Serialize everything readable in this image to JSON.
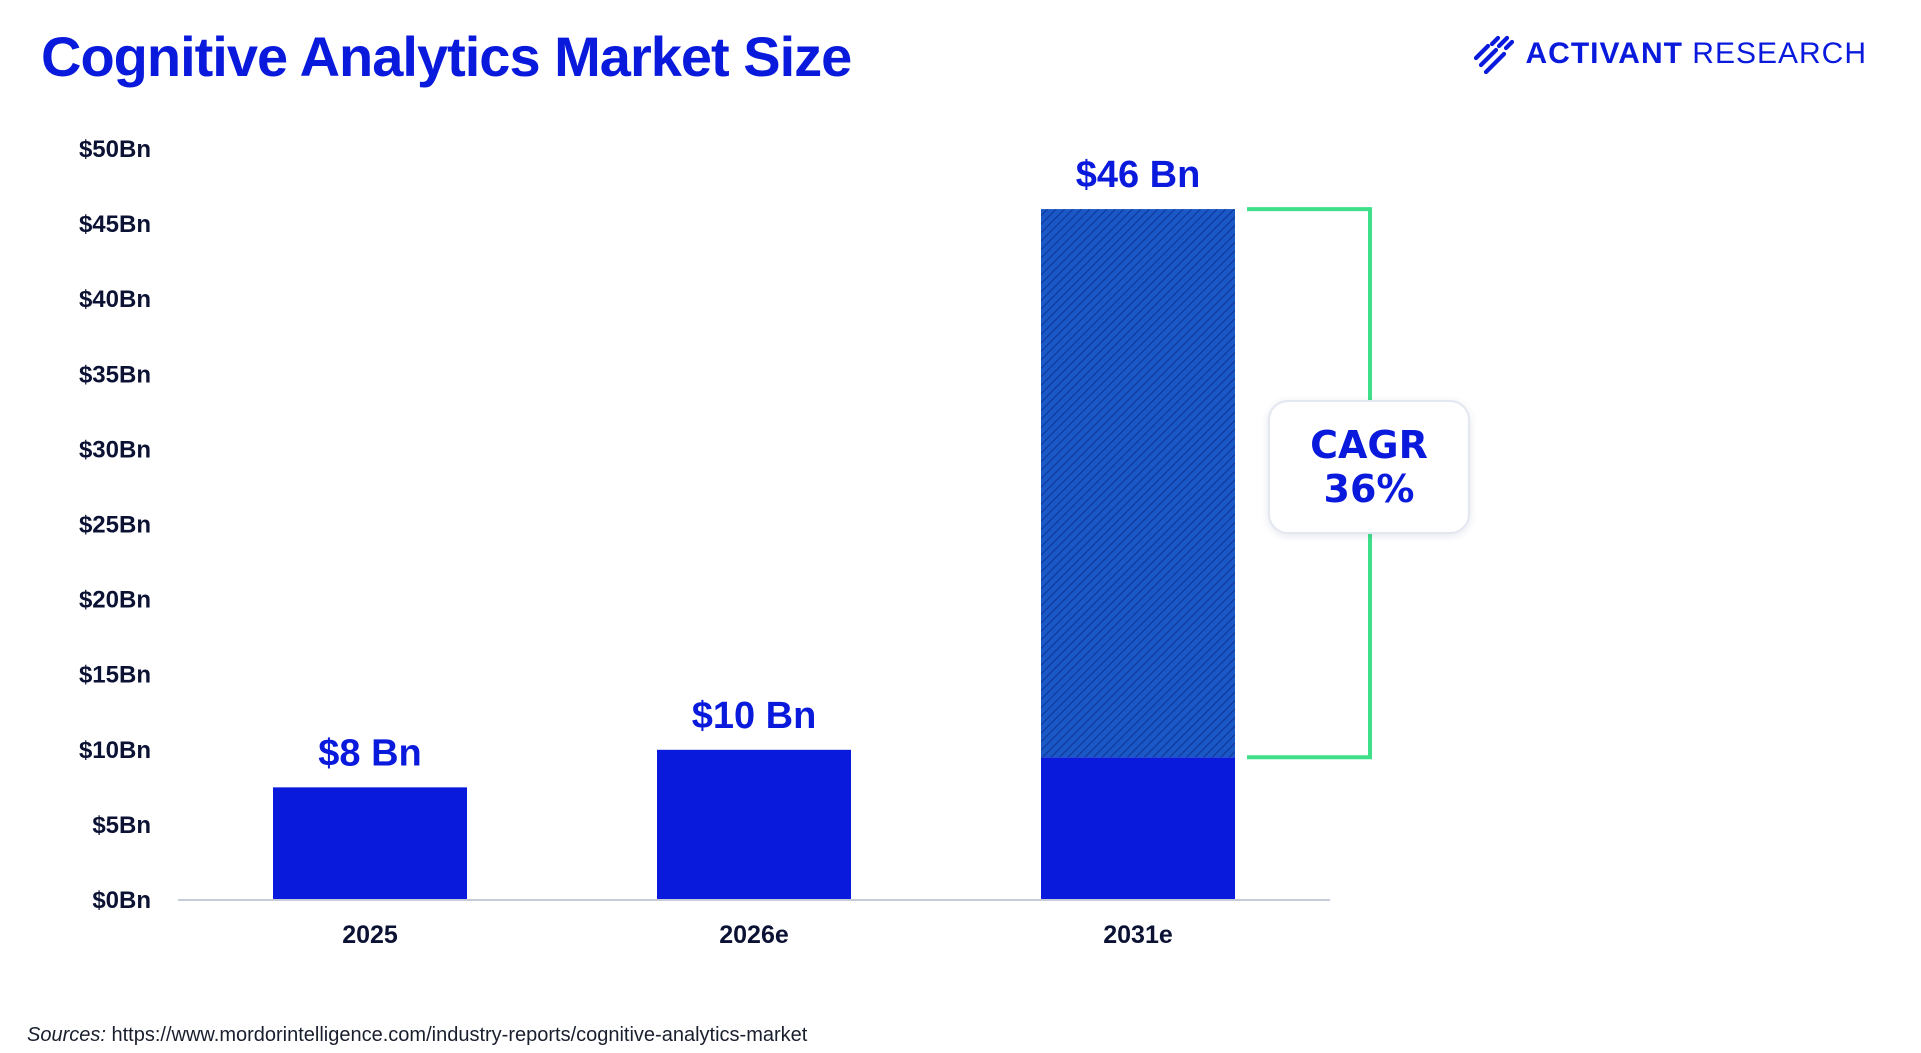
{
  "title": "Cognitive Analytics Market Size",
  "brand": {
    "name_bold": "ACTIVANT",
    "name_light": "RESEARCH",
    "logo_icon": "activant-stripes-icon"
  },
  "colors": {
    "brand_blue": "#0a1adc",
    "hatch_blue": "#1a58c8",
    "bracket_green": "#3ee08a",
    "axis_line": "#c8ccd8",
    "text_dark": "#0b1233"
  },
  "chart_data": {
    "type": "bar",
    "title": "Cognitive Analytics Market Size",
    "xlabel": "",
    "ylabel": "",
    "ylim": [
      0,
      50
    ],
    "y_ticks": [
      0,
      5,
      10,
      15,
      20,
      25,
      30,
      35,
      40,
      45,
      50
    ],
    "y_tick_labels": [
      "$0Bn",
      "$5Bn",
      "$10Bn",
      "$15Bn",
      "$20Bn",
      "$25Bn",
      "$30Bn",
      "$35Bn",
      "$40Bn",
      "$45Bn",
      "$50Bn"
    ],
    "grid": false,
    "legend": "none",
    "categories": [
      "2025",
      "2026e",
      "2031e"
    ],
    "values": [
      7.5,
      10,
      46
    ],
    "value_labels": [
      "$8 Bn",
      "$10 Bn",
      "$46 Bn"
    ],
    "stacks": [
      {
        "base": 7.5,
        "growth": 0
      },
      {
        "base": 10,
        "growth": 0
      },
      {
        "base": 9.5,
        "growth": 36.5
      }
    ],
    "annotation": {
      "type": "bracket",
      "category": "2031e",
      "from": 9.5,
      "to": 46,
      "line1": "CAGR",
      "line2": "36%"
    }
  },
  "footer": {
    "sources_label": "Sources:",
    "sources_url": "https://www.mordorintelligence.com/industry-reports/cognitive-analytics-market"
  }
}
